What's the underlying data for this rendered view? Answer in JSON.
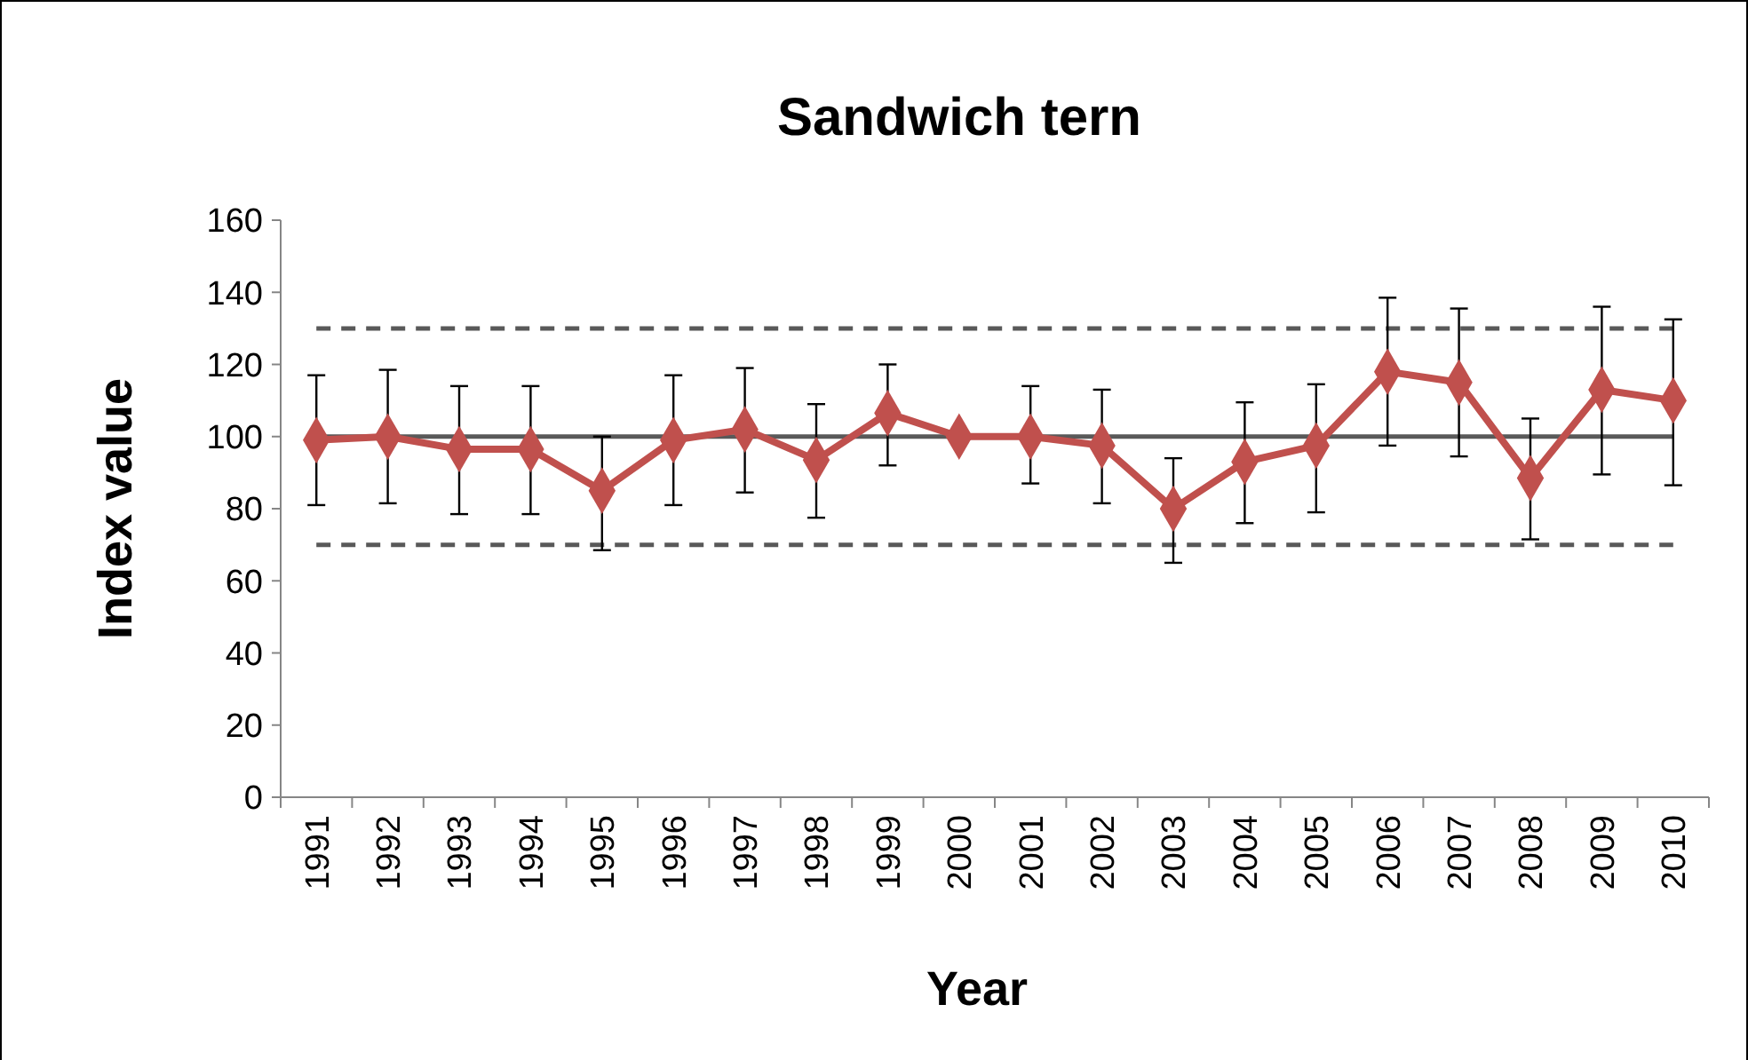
{
  "chart_data": {
    "type": "line",
    "title": "Sandwich tern",
    "xlabel": "Year",
    "ylabel": "Index value",
    "categories": [
      "1991",
      "1992",
      "1993",
      "1994",
      "1995",
      "1996",
      "1997",
      "1998",
      "1999",
      "2000",
      "2001",
      "2002",
      "2003",
      "2004",
      "2005",
      "2006",
      "2007",
      "2008",
      "2009",
      "2010"
    ],
    "series": [
      {
        "color": "#c0504d",
        "values": [
          99,
          100,
          96.5,
          96.5,
          85,
          99,
          102,
          93.5,
          106.5,
          100,
          100,
          97.5,
          80,
          93,
          97.5,
          118,
          115,
          88.5,
          113,
          110
        ],
        "errors": [
          [
            81,
            117
          ],
          [
            81.5,
            118.5
          ],
          [
            78.5,
            114
          ],
          [
            78.5,
            114
          ],
          [
            68.5,
            100
          ],
          [
            81,
            117
          ],
          [
            84.5,
            119
          ],
          [
            77.5,
            109
          ],
          [
            92,
            120
          ],
          null,
          [
            87,
            114
          ],
          [
            81.5,
            113
          ],
          [
            65,
            94
          ],
          [
            76,
            109.5
          ],
          [
            79,
            114.5
          ],
          [
            97.5,
            138.5
          ],
          [
            94.5,
            135.5
          ],
          [
            71.5,
            105
          ],
          [
            89.5,
            136
          ],
          [
            86.5,
            132.5
          ]
        ]
      }
    ],
    "ylim": [
      0,
      160
    ],
    "yticks": [
      0,
      20,
      40,
      60,
      80,
      100,
      120,
      140,
      160
    ],
    "marker": "diamond",
    "line_style": "solid",
    "grid": false,
    "ref_lines": [
      {
        "axis": "y",
        "value": 100,
        "color": "#595959",
        "line_style": "solid"
      },
      {
        "axis": "y",
        "value": 70,
        "color": "#595959",
        "line_style": "dashed"
      },
      {
        "axis": "y",
        "value": 130,
        "color": "#595959",
        "line_style": "dashed"
      }
    ]
  }
}
